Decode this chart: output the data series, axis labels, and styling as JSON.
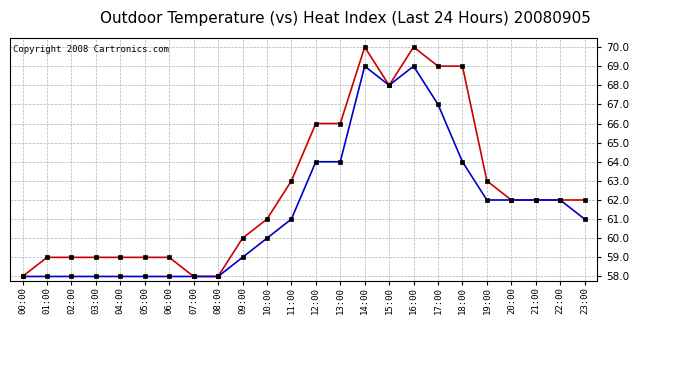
{
  "title": "Outdoor Temperature (vs) Heat Index (Last 24 Hours) 20080905",
  "copyright": "Copyright 2008 Cartronics.com",
  "hours": [
    "00:00",
    "01:00",
    "02:00",
    "03:00",
    "04:00",
    "05:00",
    "06:00",
    "07:00",
    "08:00",
    "09:00",
    "10:00",
    "11:00",
    "12:00",
    "13:00",
    "14:00",
    "15:00",
    "16:00",
    "17:00",
    "18:00",
    "19:00",
    "20:00",
    "21:00",
    "22:00",
    "23:00"
  ],
  "temp": [
    58.0,
    59.0,
    59.0,
    59.0,
    59.0,
    59.0,
    59.0,
    58.0,
    58.0,
    60.0,
    61.0,
    63.0,
    66.0,
    66.0,
    70.0,
    68.0,
    70.0,
    69.0,
    69.0,
    63.0,
    62.0,
    62.0,
    62.0,
    62.0
  ],
  "heat_index": [
    58.0,
    58.0,
    58.0,
    58.0,
    58.0,
    58.0,
    58.0,
    58.0,
    58.0,
    59.0,
    60.0,
    61.0,
    64.0,
    64.0,
    69.0,
    68.0,
    69.0,
    67.0,
    64.0,
    62.0,
    62.0,
    62.0,
    62.0,
    61.0
  ],
  "temp_color": "#cc0000",
  "heat_index_color": "#0000cc",
  "bg_color": "#ffffff",
  "plot_bg_color": "#ffffff",
  "grid_color": "#b0b0b0",
  "ylim": [
    57.75,
    70.5
  ],
  "yticks": [
    58.0,
    59.0,
    60.0,
    61.0,
    62.0,
    63.0,
    64.0,
    65.0,
    66.0,
    67.0,
    68.0,
    69.0,
    70.0
  ],
  "title_fontsize": 11,
  "copyright_fontsize": 6.5,
  "marker": "s",
  "marker_size": 2.5,
  "linewidth": 1.2
}
